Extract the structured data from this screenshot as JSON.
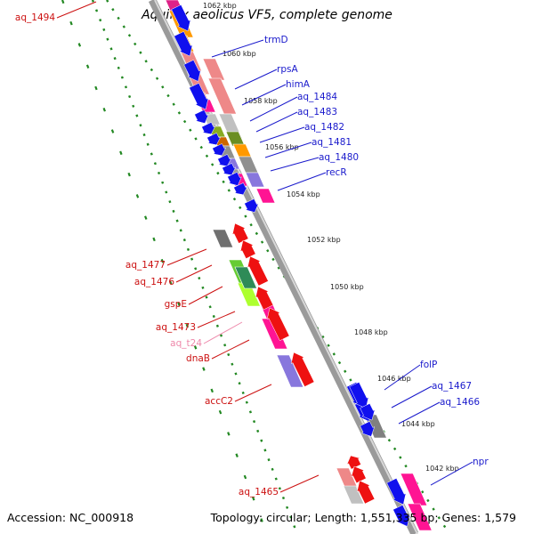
{
  "title": "Aquifex aeolicus VF5, complete genome",
  "footer": {
    "accession": "Accession: NC_000918",
    "topology": "Topology: circular; Length: 1,551,335 bp; Genes: 1,579"
  },
  "colors": {
    "forward_label": "#1a1acc",
    "reverse_label": "#cc1111",
    "trna_label": "#ee88aa",
    "backbone": "#909090",
    "tick_dots": "#228822"
  },
  "tick_labels": [
    "1062 kbp",
    "1060 kbp",
    "1058 kbp",
    "1056 kbp",
    "1054 kbp",
    "1052 kbp",
    "1050 kbp",
    "1048 kbp",
    "1046 kbp",
    "1044 kbp",
    "1042 kbp"
  ],
  "forward_genes": [
    "trmD",
    "rpsA",
    "himA",
    "aq_1484",
    "aq_1483",
    "aq_1482",
    "aq_1481",
    "aq_1480",
    "recR",
    "folP",
    "aq_1467",
    "aq_1466",
    "npr"
  ],
  "reverse_genes": [
    "aq_1494",
    "aq_1477",
    "aq_1476",
    "gspE",
    "aq_1473",
    "aq_t24",
    "dnaB",
    "accC2",
    "aq_1465"
  ]
}
